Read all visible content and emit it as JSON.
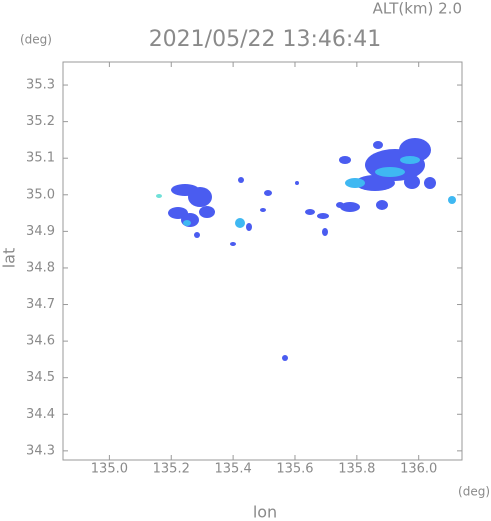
{
  "chart_data": {
    "type": "map",
    "title": "2021/05/22 13:46:41",
    "altitude_label": "ALT(km) 2.0",
    "x_label": "lon",
    "y_label": "lat",
    "x_unit": "(deg)",
    "y_unit": "(deg)",
    "xlim": [
      134.85,
      136.14
    ],
    "ylim": [
      34.275,
      35.363
    ],
    "xticks": [
      {
        "value": 135.0,
        "label": "135.0"
      },
      135.2,
      135.4,
      135.6,
      135.8,
      {
        "value": 136.0,
        "label": "136.0"
      }
    ],
    "yticks": [
      34.3,
      34.4,
      34.5,
      34.6,
      34.7,
      34.8,
      34.9,
      {
        "value": 35.0,
        "label": "35.0"
      },
      35.1,
      35.2,
      35.3
    ],
    "grid": false
  }
}
